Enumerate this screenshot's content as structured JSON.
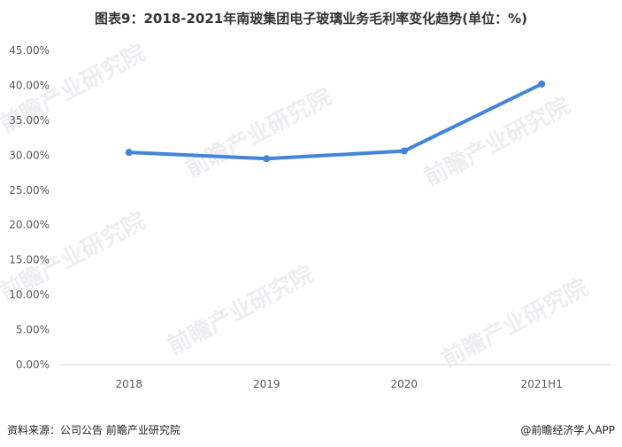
{
  "chart_data": {
    "type": "line",
    "title": "图表9：2018-2021年南玻集团电子玻璃业务毛利率变化趋势(单位：%)",
    "categories": [
      "2018",
      "2019",
      "2020",
      "2021H1"
    ],
    "series": [
      {
        "values": [
          30.4,
          29.5,
          30.6,
          40.2
        ]
      }
    ],
    "ylim": [
      0,
      45
    ],
    "yticks": [
      "0.00%",
      "5.00%",
      "10.00%",
      "15.00%",
      "20.00%",
      "25.00%",
      "30.00%",
      "35.00%",
      "40.00%",
      "45.00%"
    ],
    "xlabel": "",
    "ylabel": "",
    "grid": false,
    "line_color": "#4285D8"
  },
  "footer": {
    "source": "资料来源：公司公告 前瞻产业研究院",
    "brand": "@前瞻经济学人APP"
  },
  "watermark": "前瞻产业研究院"
}
